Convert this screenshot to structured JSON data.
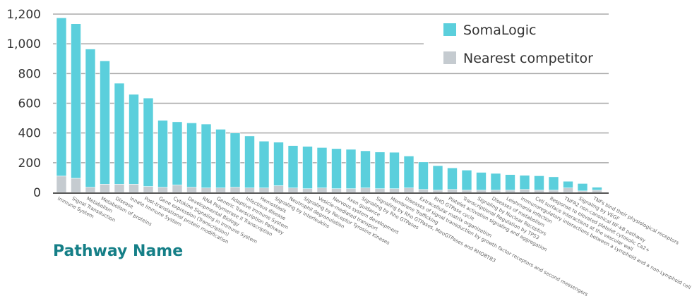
{
  "chart_data": {
    "type": "bar",
    "stacked": true,
    "title": "",
    "xlabel": "Pathway Name",
    "ylabel": "",
    "ylim": [
      0,
      1200
    ],
    "yticks": [
      0,
      200,
      400,
      600,
      800,
      1000,
      1200
    ],
    "ytick_labels": [
      "0",
      "200",
      "400",
      "600",
      "800",
      "1,000",
      "1,200"
    ],
    "grid": true,
    "legend_position": "top-right",
    "categories": [
      "Immune System",
      "Signal Transduction",
      "Metabolism",
      "Metabolism of proteins",
      "Disease",
      "Innate Immune System",
      "Post-translational protein modification",
      "Gene expression (Transcription)",
      "Cytokine Signaling in Immune System",
      "Developmental Biology",
      "RNA Polymerase II Transcription",
      "Generic Transcription Pathway",
      "Adaptive Immune System",
      "Infectious disease",
      "Hemostasis",
      "Signaling by Interleukins",
      "Neutrophil degranulation",
      "Signaling by Receptor Tyrosine Kinases",
      "Vesicle-mediated transport",
      "Nervous system development",
      "Axon guidance",
      "Signaling by Rho GTPases",
      "Signaling by Rho GTPases, MiroGTPases and RHOBTB3",
      "Membrane Trafficking",
      "Diseases of signal transduction by growth factor receptors and second messengers",
      "Extracellular matrix organization",
      "RHO GTPase cycle",
      "Platelet activation signaling and aggregation",
      "Transcriptional Regulation by TP53",
      "Signaling by Nuclear Receptors",
      "Diseases of metabolism",
      "Leishmania infection",
      "Immunoregulatory interactions between a Lymphoid and a non-Lymphoid cell",
      "Cell surface interactions at the vascular wall",
      "Response to elevated platelet cytosolic Ca2+",
      "TNFR2 non-canonical NF-kB pathway",
      "Signaling by VEGF",
      "TNFs bind their physiological receptors"
    ],
    "series": [
      {
        "name": "Nearest competitor",
        "color": "#c5cbd0",
        "values": [
          110,
          95,
          35,
          55,
          55,
          55,
          40,
          35,
          50,
          35,
          30,
          30,
          35,
          30,
          30,
          45,
          30,
          25,
          30,
          25,
          25,
          30,
          25,
          25,
          30,
          20,
          15,
          20,
          15,
          15,
          15,
          15,
          20,
          15,
          15,
          30,
          10,
          15
        ]
      },
      {
        "name": "SomaLogic",
        "color": "#5bcfdc",
        "values": [
          1065,
          1040,
          930,
          830,
          680,
          605,
          595,
          450,
          425,
          433,
          430,
          395,
          365,
          350,
          315,
          293,
          285,
          285,
          272,
          270,
          265,
          250,
          247,
          245,
          215,
          185,
          165,
          145,
          135,
          120,
          113,
          105,
          95,
          97,
          90,
          45,
          50,
          20
        ]
      }
    ]
  }
}
